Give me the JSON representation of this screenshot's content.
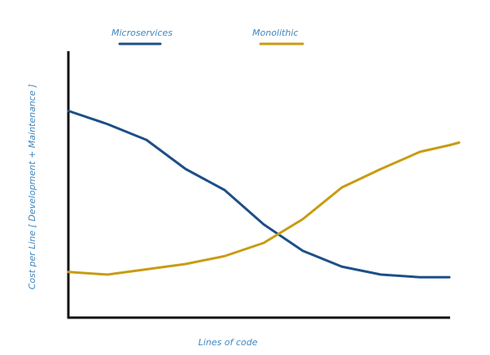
{
  "chart_data": {
    "type": "line",
    "x_label": "Lines of code",
    "y_label": "Cost per Line [ Development + Maintenance ]",
    "x": [
      0,
      10,
      20,
      30,
      40,
      50,
      60,
      70,
      80,
      90,
      97.5,
      100
    ],
    "xlim": [
      0,
      100
    ],
    "ylim": [
      0,
      100
    ],
    "series": [
      {
        "name": "Microservices",
        "color": "#1d4f86",
        "values": [
          78,
          73,
          67,
          56,
          48,
          35,
          25,
          19,
          16,
          15,
          15,
          null
        ]
      },
      {
        "name": "Monolithic",
        "color": "#c99b12",
        "values": [
          17,
          16,
          18,
          20,
          23,
          28,
          37,
          49,
          56,
          62.5,
          65,
          66
        ]
      }
    ]
  }
}
